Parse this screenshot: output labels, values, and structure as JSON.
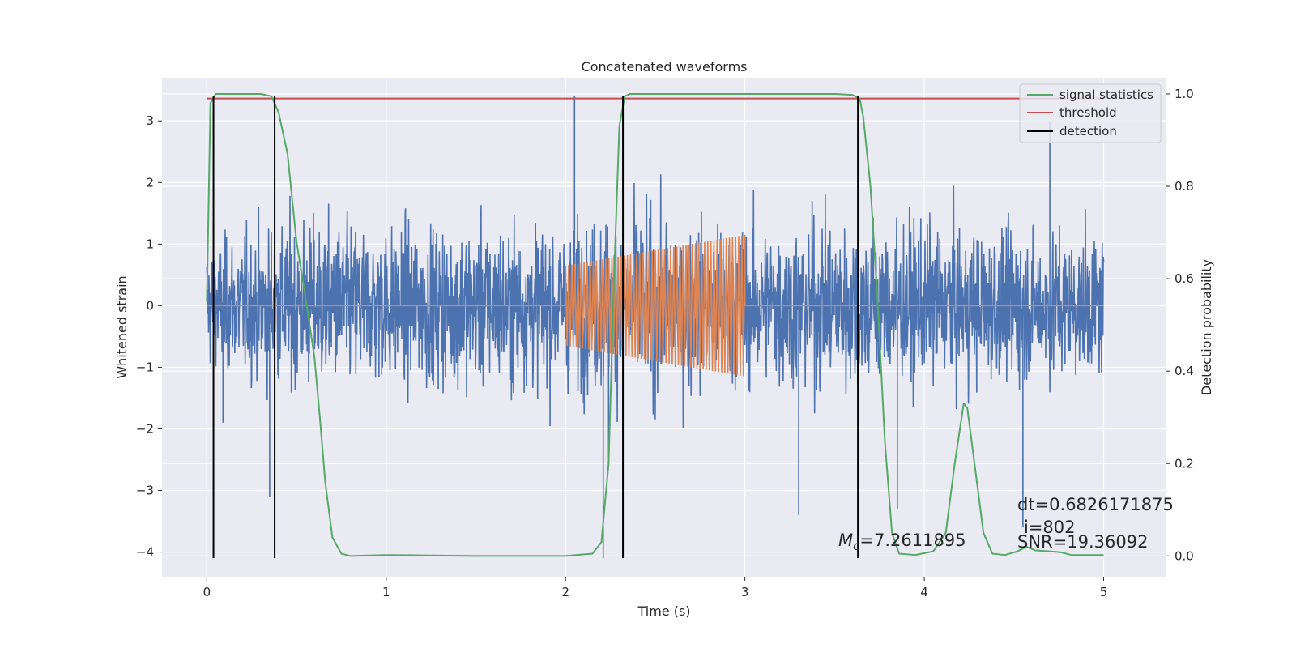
{
  "chart_data": {
    "type": "line",
    "title": "Concatenated waveforms",
    "xlabel": "Time (s)",
    "ylabel_left": "Whitened strain",
    "ylabel_right": "Detection probability",
    "xlim": [
      -0.25,
      5.35
    ],
    "ylim_left": [
      -4.4,
      3.7
    ],
    "ylim_right": [
      -0.045,
      1.035
    ],
    "x_ticks": [
      0,
      1,
      2,
      3,
      4,
      5
    ],
    "y_ticks_left": [
      -4,
      -3,
      -2,
      -1,
      0,
      1,
      2,
      3
    ],
    "y_ticks_right": [
      "0.0",
      "0.2",
      "0.4",
      "0.6",
      "0.8",
      "1.0"
    ],
    "grid": true,
    "legend_position": "top-right",
    "colors": {
      "background": "#eaeaf2",
      "strain": "#4c72b0",
      "template": "#dd8452",
      "signal_statistics": "#55a868",
      "threshold": "#c44e52",
      "detection": "#000000"
    },
    "series": [
      {
        "name": "signal statistics",
        "axis": "right",
        "points": [
          [
            0.0,
            0.55
          ],
          [
            0.02,
            0.98
          ],
          [
            0.05,
            1.0
          ],
          [
            0.1,
            1.0
          ],
          [
            0.2,
            1.0
          ],
          [
            0.3,
            1.0
          ],
          [
            0.36,
            0.995
          ],
          [
            0.4,
            0.96
          ],
          [
            0.45,
            0.87
          ],
          [
            0.5,
            0.68
          ],
          [
            0.55,
            0.56
          ],
          [
            0.6,
            0.43
          ],
          [
            0.63,
            0.3
          ],
          [
            0.66,
            0.16
          ],
          [
            0.7,
            0.04
          ],
          [
            0.75,
            0.005
          ],
          [
            0.8,
            0.0
          ],
          [
            1.0,
            0.002
          ],
          [
            1.5,
            0.0
          ],
          [
            2.0,
            0.0
          ],
          [
            2.15,
            0.005
          ],
          [
            2.2,
            0.03
          ],
          [
            2.24,
            0.2
          ],
          [
            2.27,
            0.6
          ],
          [
            2.3,
            0.93
          ],
          [
            2.33,
            0.995
          ],
          [
            2.36,
            1.0
          ],
          [
            2.5,
            1.0
          ],
          [
            3.0,
            1.0
          ],
          [
            3.5,
            1.0
          ],
          [
            3.6,
            0.998
          ],
          [
            3.64,
            0.99
          ],
          [
            3.66,
            0.95
          ],
          [
            3.7,
            0.8
          ],
          [
            3.74,
            0.55
          ],
          [
            3.78,
            0.25
          ],
          [
            3.82,
            0.05
          ],
          [
            3.86,
            0.005
          ],
          [
            3.95,
            0.002
          ],
          [
            4.05,
            0.01
          ],
          [
            4.12,
            0.05
          ],
          [
            4.17,
            0.2
          ],
          [
            4.22,
            0.33
          ],
          [
            4.24,
            0.32
          ],
          [
            4.28,
            0.2
          ],
          [
            4.33,
            0.05
          ],
          [
            4.38,
            0.005
          ],
          [
            4.45,
            0.002
          ],
          [
            4.52,
            0.01
          ],
          [
            4.57,
            0.02
          ],
          [
            4.62,
            0.012
          ],
          [
            4.7,
            0.01
          ],
          [
            4.76,
            0.008
          ],
          [
            4.82,
            0.002
          ],
          [
            5.0,
            0.002
          ]
        ]
      },
      {
        "name": "threshold",
        "axis": "right",
        "points": [
          [
            0.0,
            0.99
          ],
          [
            5.0,
            0.99
          ]
        ]
      },
      {
        "name": "detection",
        "axis": "left",
        "x": [
          0.037,
          0.378,
          2.32,
          3.63
        ],
        "y_range": [
          -4.1,
          3.4
        ]
      }
    ],
    "strain_series": {
      "axis": "left",
      "envelope": [
        [
          0.0,
          2.0
        ],
        [
          0.5,
          2.8
        ],
        [
          1.0,
          2.6
        ],
        [
          1.5,
          2.7
        ],
        [
          2.0,
          2.6
        ],
        [
          2.3,
          3.0
        ],
        [
          3.0,
          2.6
        ],
        [
          3.5,
          2.9
        ],
        [
          4.0,
          2.6
        ],
        [
          4.5,
          2.5
        ],
        [
          5.0,
          2.3
        ]
      ],
      "spikes": [
        [
          0.09,
          -1.9
        ],
        [
          0.35,
          -3.1
        ],
        [
          2.05,
          3.4
        ],
        [
          2.21,
          -4.1
        ],
        [
          2.24,
          -2.6
        ],
        [
          3.3,
          -3.4
        ],
        [
          3.85,
          -3.3
        ],
        [
          4.55,
          -3.6
        ],
        [
          4.7,
          3.0
        ]
      ]
    },
    "template_series": {
      "axis": "left",
      "segments": [
        {
          "x_start": 0.0,
          "x_end": 2.0,
          "value": 0.0
        },
        {
          "x_start": 2.0,
          "x_end": 3.0,
          "amp_start": 0.65,
          "amp_end": 1.15,
          "cycles": 58
        },
        {
          "x_start": 3.0,
          "x_end": 5.0,
          "value": 0.0
        }
      ]
    },
    "annotations": {
      "mc_symbol": "M",
      "mc_subscript": "c",
      "mc_value": "=7.2611895",
      "dt": "dt=0.6826171875",
      "i": "i=802",
      "snr": "SNR=19.36092"
    }
  }
}
